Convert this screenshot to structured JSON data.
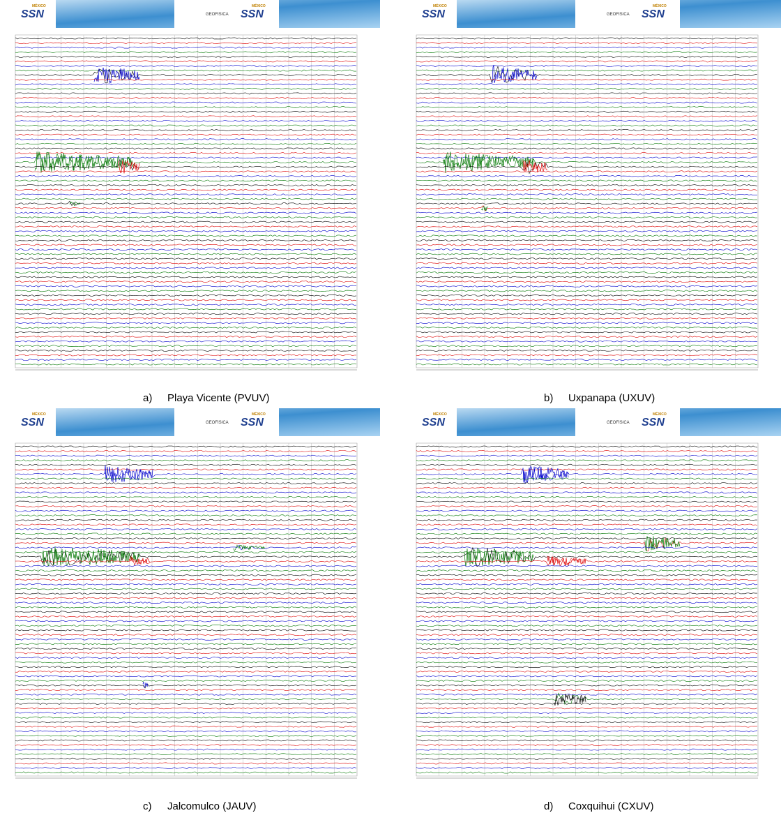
{
  "banner": {
    "agency": "SSN",
    "country": "MÉXICO",
    "institute": "GEOFISICA"
  },
  "panels": [
    {
      "label": "a)",
      "caption": "Playa Vicente (PVUV)"
    },
    {
      "label": "b)",
      "caption": "Uxpanapa (UXUV)"
    },
    {
      "label": "c)",
      "caption": "Jalcomulco (JAUV)"
    },
    {
      "label": "d)",
      "caption": "Coxquihui (CXUV)"
    }
  ]
}
